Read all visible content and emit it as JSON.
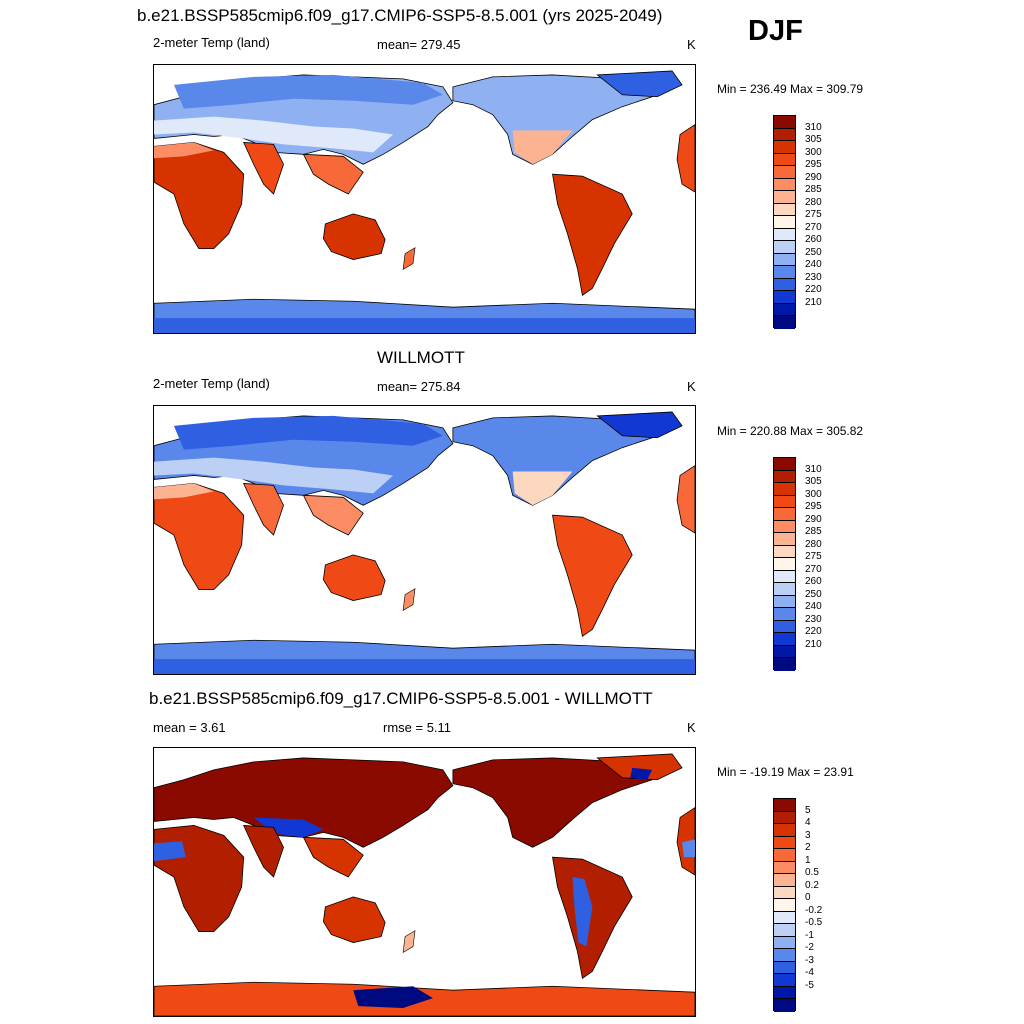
{
  "season": "DJF",
  "units": "K",
  "panels": [
    {
      "title": "b.e21.BSSP585cmip6.f09_g17.CMIP6-SSP5-8.5.001 (yrs 2025-2049)",
      "left_label": "2-meter Temp (land)",
      "center_label": "mean= 279.45",
      "right_label": "K",
      "minmax": "Min = 236.49 Max = 309.79"
    },
    {
      "title": "WILLMOTT",
      "left_label": "2-meter Temp (land)",
      "center_label": "mean= 275.84",
      "right_label": "K",
      "minmax": "Min = 220.88 Max = 305.82"
    },
    {
      "title": "b.e21.BSSP585cmip6.f09_g17.CMIP6-SSP5-8.5.001 - WILLMOTT",
      "left_label": "mean =   3.61",
      "center_label": "rmse =   5.11",
      "right_label": "K",
      "minmax": "Min = -19.19 Max =  23.91"
    }
  ],
  "colorbars": {
    "temperature": {
      "labels": [
        "310",
        "305",
        "300",
        "295",
        "290",
        "285",
        "280",
        "275",
        "270",
        "260",
        "250",
        "240",
        "230",
        "220",
        "210"
      ],
      "colors": [
        "#8b0a00",
        "#b21f00",
        "#d63300",
        "#ef4a16",
        "#f8693a",
        "#fb8c63",
        "#fcb391",
        "#fdd8c1",
        "#fff5ea",
        "#dfe9fa",
        "#bcd0f6",
        "#8fb1f2",
        "#5a88ea",
        "#2f60e2",
        "#1138d2",
        "#0018a8",
        "#000a80"
      ]
    },
    "difference": {
      "labels": [
        "5",
        "4",
        "3",
        "2",
        "1",
        "0.5",
        "0.2",
        "0",
        "-0.2",
        "-0.5",
        "-1",
        "-2",
        "-3",
        "-4",
        "-5"
      ],
      "colors": [
        "#8b0a00",
        "#b21f00",
        "#d63300",
        "#ef4a16",
        "#f8693a",
        "#fb8c63",
        "#fcb391",
        "#fdd8c1",
        "#fff5ea",
        "#dfe9fa",
        "#bcd0f6",
        "#8fb1f2",
        "#5a88ea",
        "#2f60e2",
        "#1138d2",
        "#0018a8",
        "#000a80"
      ]
    }
  }
}
